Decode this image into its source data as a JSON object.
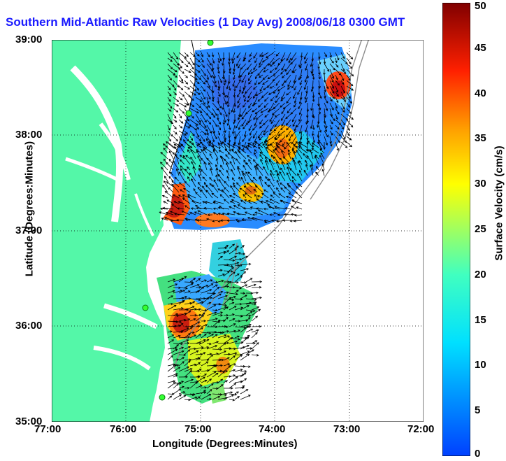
{
  "title": "Southern Mid-Atlantic Raw Velocities (1 Day Avg) 2008/06/18 0300 GMT",
  "x_axis": {
    "label": "Longitude (Degrees:Minutes)",
    "ticks": [
      "77:00",
      "76:00",
      "75:00",
      "74:00",
      "73:00",
      "72:00"
    ]
  },
  "y_axis": {
    "label": "Latitude (Degrees:Minutes)",
    "ticks": [
      "39:00",
      "38:00",
      "37:00",
      "36:00",
      "35:00"
    ]
  },
  "colorbar": {
    "label": "Surface Velocity (cm/s)",
    "ticks": [
      "50",
      "45",
      "40",
      "35",
      "30",
      "25",
      "20",
      "15",
      "10",
      "5",
      "0"
    ],
    "colormap": "jet"
  },
  "colors": {
    "land": "#54f7a8",
    "title": "#1a1aff",
    "sites": "#33ff33"
  }
}
